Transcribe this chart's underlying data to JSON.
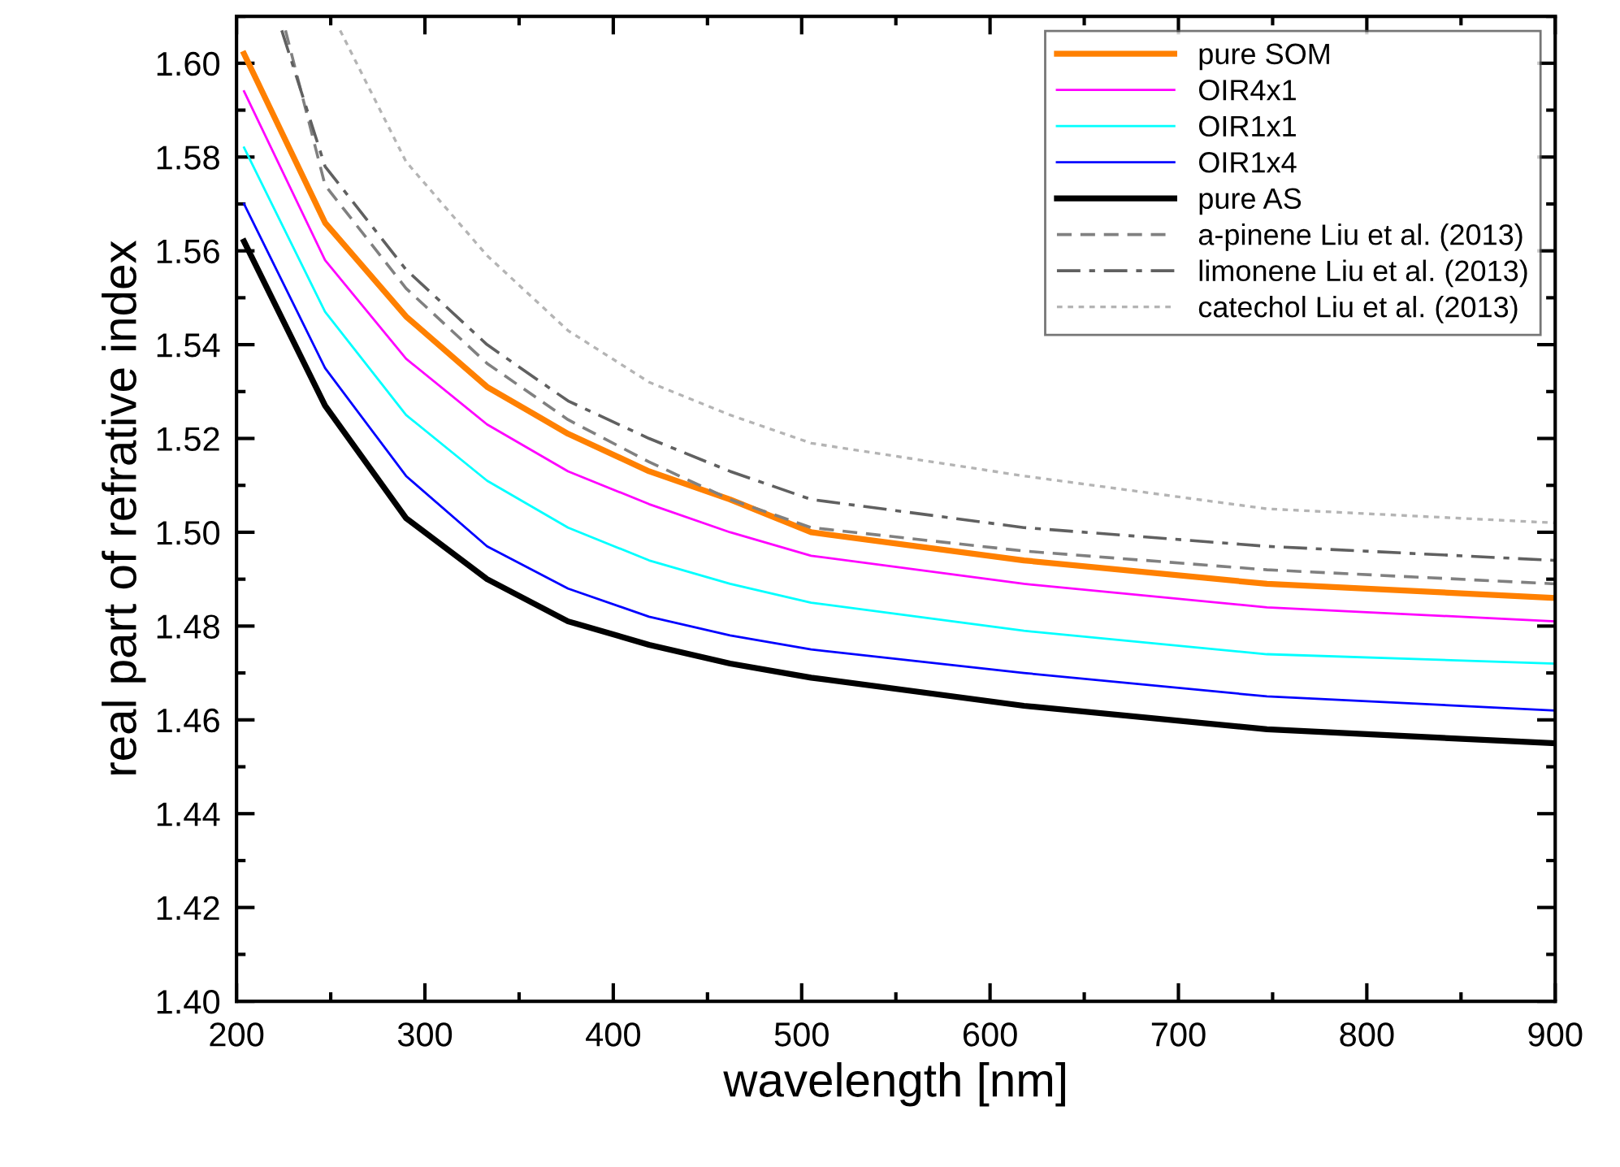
{
  "chart_data": {
    "type": "line",
    "xlabel": "wavelength [nm]",
    "ylabel": "real part of refrative index",
    "xlim": [
      200,
      900
    ],
    "ylim": [
      1.4,
      1.61
    ],
    "xticks": [
      200,
      300,
      400,
      500,
      600,
      700,
      800,
      900
    ],
    "yticks": [
      {
        "value": 1.4,
        "label": "1.40"
      },
      {
        "value": 1.42,
        "label": "1.42"
      },
      {
        "value": 1.44,
        "label": "1.44"
      },
      {
        "value": 1.46,
        "label": "1.46"
      },
      {
        "value": 1.48,
        "label": "1.48"
      },
      {
        "value": 1.5,
        "label": "1.50"
      },
      {
        "value": 1.52,
        "label": "1.52"
      },
      {
        "value": 1.54,
        "label": "1.54"
      },
      {
        "value": 1.56,
        "label": "1.56"
      },
      {
        "value": 1.58,
        "label": "1.58"
      },
      {
        "value": 1.6,
        "label": "1.60"
      }
    ],
    "grid": false,
    "legend": "top right",
    "series": [
      {
        "name": "pure SOM",
        "color": "#ff8000",
        "line_style": "solid",
        "x": [
          204,
          247,
          290,
          333,
          376,
          419,
          462,
          505,
          618,
          747,
          900
        ],
        "values": [
          1.602,
          1.566,
          1.546,
          1.531,
          1.521,
          1.513,
          1.507,
          1.5,
          1.494,
          1.489,
          1.486
        ]
      },
      {
        "name": "OIR4x1",
        "color": "#ff00ff",
        "line_style": "solid",
        "x": [
          204,
          247,
          290,
          333,
          376,
          419,
          462,
          505,
          618,
          747,
          900
        ],
        "values": [
          1.594,
          1.558,
          1.537,
          1.523,
          1.513,
          1.506,
          1.5,
          1.495,
          1.489,
          1.484,
          1.481
        ]
      },
      {
        "name": "OIR1x1",
        "color": "#00ffff",
        "line_style": "solid",
        "x": [
          204,
          247,
          290,
          333,
          376,
          419,
          462,
          505,
          618,
          747,
          900
        ],
        "values": [
          1.582,
          1.547,
          1.525,
          1.511,
          1.501,
          1.494,
          1.489,
          1.485,
          1.479,
          1.474,
          1.472
        ]
      },
      {
        "name": "OIR1x4",
        "color": "#0000ff",
        "line_style": "solid",
        "x": [
          204,
          247,
          290,
          333,
          376,
          419,
          462,
          505,
          618,
          747,
          900
        ],
        "values": [
          1.57,
          1.535,
          1.512,
          1.497,
          1.488,
          1.482,
          1.478,
          1.475,
          1.47,
          1.465,
          1.462
        ]
      },
      {
        "name": "pure AS",
        "color": "#000000",
        "line_style": "solid",
        "x": [
          204,
          247,
          290,
          333,
          376,
          419,
          462,
          505,
          618,
          747,
          900
        ],
        "values": [
          1.562,
          1.527,
          1.503,
          1.49,
          1.481,
          1.476,
          1.472,
          1.469,
          1.463,
          1.458,
          1.455
        ]
      },
      {
        "name": "a-pinene Liu et al. (2013)",
        "color": "#808080",
        "line_style": "dashed",
        "x": [
          226,
          247,
          290,
          333,
          376,
          419,
          462,
          505,
          618,
          747,
          900
        ],
        "values": [
          1.607,
          1.574,
          1.552,
          1.536,
          1.524,
          1.515,
          1.507,
          1.501,
          1.496,
          1.492,
          1.489
        ]
      },
      {
        "name": "limonene Liu et al. (2013)",
        "color": "#606060",
        "line_style": "dashdot",
        "x": [
          224,
          247,
          290,
          333,
          376,
          419,
          462,
          505,
          618,
          747,
          900
        ],
        "values": [
          1.607,
          1.578,
          1.556,
          1.54,
          1.528,
          1.52,
          1.513,
          1.507,
          1.501,
          1.497,
          1.494
        ]
      },
      {
        "name": "catechol Liu et al. (2013)",
        "color": "#b4b4b4",
        "line_style": "dotted",
        "x": [
          255,
          290,
          333,
          376,
          419,
          462,
          505,
          618,
          747,
          900
        ],
        "values": [
          1.607,
          1.579,
          1.559,
          1.543,
          1.532,
          1.525,
          1.519,
          1.512,
          1.505,
          1.502
        ]
      }
    ]
  }
}
